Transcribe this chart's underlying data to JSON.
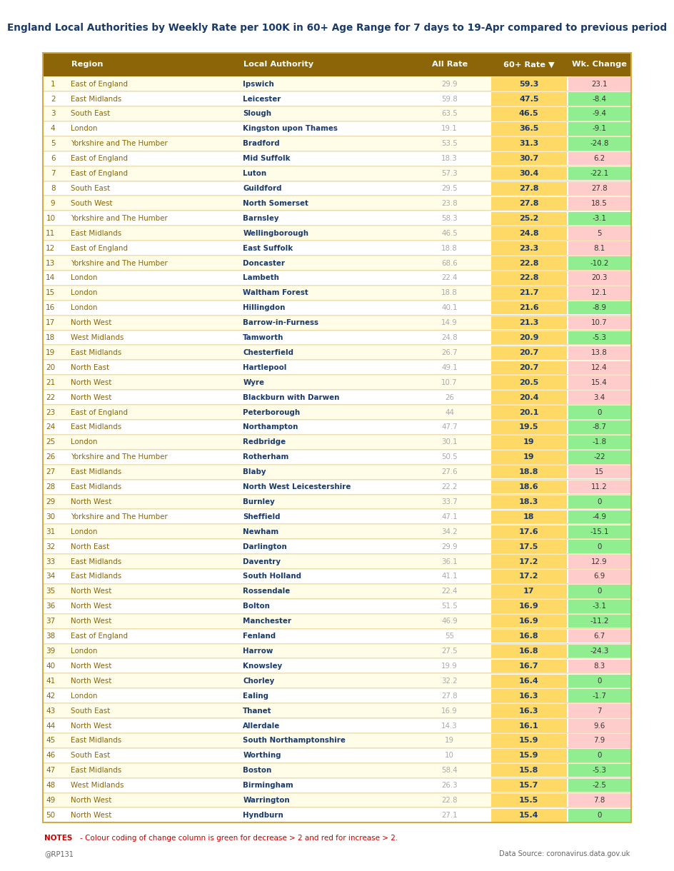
{
  "title": "England Local Authorities by Weekly Rate per 100K in 60+ Age Range for 7 days to 19-Apr compared to previous period",
  "rows": [
    [
      1,
      "East of England",
      "Ipswich",
      "29.9",
      "59.3",
      23.1
    ],
    [
      2,
      "East Midlands",
      "Leicester",
      "59.8",
      "47.5",
      -8.4
    ],
    [
      3,
      "South East",
      "Slough",
      "63.5",
      "46.5",
      -9.4
    ],
    [
      4,
      "London",
      "Kingston upon Thames",
      "19.1",
      "36.5",
      -9.1
    ],
    [
      5,
      "Yorkshire and The Humber",
      "Bradford",
      "53.5",
      "31.3",
      -24.8
    ],
    [
      6,
      "East of England",
      "Mid Suffolk",
      "18.3",
      "30.7",
      6.2
    ],
    [
      7,
      "East of England",
      "Luton",
      "57.3",
      "30.4",
      -22.1
    ],
    [
      8,
      "South East",
      "Guildford",
      "29.5",
      "27.8",
      27.8
    ],
    [
      9,
      "South West",
      "North Somerset",
      "23.8",
      "27.8",
      18.5
    ],
    [
      10,
      "Yorkshire and The Humber",
      "Barnsley",
      "58.3",
      "25.2",
      -3.1
    ],
    [
      11,
      "East Midlands",
      "Wellingborough",
      "46.5",
      "24.8",
      5.0
    ],
    [
      12,
      "East of England",
      "East Suffolk",
      "18.8",
      "23.3",
      8.1
    ],
    [
      13,
      "Yorkshire and The Humber",
      "Doncaster",
      "68.6",
      "22.8",
      -10.2
    ],
    [
      14,
      "London",
      "Lambeth",
      "22.4",
      "22.8",
      20.3
    ],
    [
      15,
      "London",
      "Waltham Forest",
      "18.8",
      "21.7",
      12.1
    ],
    [
      16,
      "London",
      "Hillingdon",
      "40.1",
      "21.6",
      -8.9
    ],
    [
      17,
      "North West",
      "Barrow-in-Furness",
      "14.9",
      "21.3",
      10.7
    ],
    [
      18,
      "West Midlands",
      "Tamworth",
      "24.8",
      "20.9",
      -5.3
    ],
    [
      19,
      "East Midlands",
      "Chesterfield",
      "26.7",
      "20.7",
      13.8
    ],
    [
      20,
      "North East",
      "Hartlepool",
      "49.1",
      "20.7",
      12.4
    ],
    [
      21,
      "North West",
      "Wyre",
      "10.7",
      "20.5",
      15.4
    ],
    [
      22,
      "North West",
      "Blackburn with Darwen",
      "26",
      "20.4",
      3.4
    ],
    [
      23,
      "East of England",
      "Peterborough",
      "44",
      "20.1",
      0.0
    ],
    [
      24,
      "East Midlands",
      "Northampton",
      "47.7",
      "19.5",
      -8.7
    ],
    [
      25,
      "London",
      "Redbridge",
      "30.1",
      "19",
      -1.8
    ],
    [
      26,
      "Yorkshire and The Humber",
      "Rotherham",
      "50.5",
      "19",
      -22.0
    ],
    [
      27,
      "East Midlands",
      "Blaby",
      "27.6",
      "18.8",
      15.0
    ],
    [
      28,
      "East Midlands",
      "North West Leicestershire",
      "22.2",
      "18.6",
      11.2
    ],
    [
      29,
      "North West",
      "Burnley",
      "33.7",
      "18.3",
      0.0
    ],
    [
      30,
      "Yorkshire and The Humber",
      "Sheffield",
      "47.1",
      "18",
      -4.9
    ],
    [
      31,
      "London",
      "Newham",
      "34.2",
      "17.6",
      -15.1
    ],
    [
      32,
      "North East",
      "Darlington",
      "29.9",
      "17.5",
      0.0
    ],
    [
      33,
      "East Midlands",
      "Daventry",
      "36.1",
      "17.2",
      12.9
    ],
    [
      34,
      "East Midlands",
      "South Holland",
      "41.1",
      "17.2",
      6.9
    ],
    [
      35,
      "North West",
      "Rossendale",
      "22.4",
      "17",
      0.0
    ],
    [
      36,
      "North West",
      "Bolton",
      "51.5",
      "16.9",
      -3.1
    ],
    [
      37,
      "North West",
      "Manchester",
      "46.9",
      "16.9",
      -11.2
    ],
    [
      38,
      "East of England",
      "Fenland",
      "55",
      "16.8",
      6.7
    ],
    [
      39,
      "London",
      "Harrow",
      "27.5",
      "16.8",
      -24.3
    ],
    [
      40,
      "North West",
      "Knowsley",
      "19.9",
      "16.7",
      8.3
    ],
    [
      41,
      "North West",
      "Chorley",
      "32.2",
      "16.4",
      0.0
    ],
    [
      42,
      "London",
      "Ealing",
      "27.8",
      "16.3",
      -1.7
    ],
    [
      43,
      "South East",
      "Thanet",
      "16.9",
      "16.3",
      7.0
    ],
    [
      44,
      "North West",
      "Allerdale",
      "14.3",
      "16.1",
      9.6
    ],
    [
      45,
      "East Midlands",
      "South Northamptonshire",
      "19",
      "15.9",
      7.9
    ],
    [
      46,
      "South East",
      "Worthing",
      "10",
      "15.9",
      0.0
    ],
    [
      47,
      "East Midlands",
      "Boston",
      "58.4",
      "15.8",
      -5.3
    ],
    [
      48,
      "West Midlands",
      "Birmingham",
      "26.3",
      "15.7",
      -2.5
    ],
    [
      49,
      "North West",
      "Warrington",
      "22.8",
      "15.5",
      7.8
    ],
    [
      50,
      "North West",
      "Hyndburn",
      "27.1",
      "15.4",
      0.0
    ]
  ],
  "bg_color": "#ffffff",
  "title_color": "#1a3a6b",
  "header_bg": "#8B6508",
  "header_fg": "#ffffff",
  "row_bg_light": "#FFFDE7",
  "row_bg_lighter": "#FFFFFF",
  "rate60_bg": "#FFD966",
  "change_red_bg": "#FFCCCC",
  "change_green_bg": "#90EE90",
  "change_neutral_bg": "#90EE90",
  "region_color": "#8B6508",
  "la_color": "#1a3a6b",
  "allrate_color": "#AAAAAA",
  "rate60_color": "#1a3a6b",
  "change_color": "#333333",
  "border_color": "#D4AA44",
  "notes_color": "#CC0000",
  "footer_color": "#666666",
  "notes_text": "- Colour coding of change column is green for decrease > 2 and red for increase > 2.",
  "footer_left": "@RP131",
  "footer_right": "Data Source: coronavirus.data.gov.uk"
}
